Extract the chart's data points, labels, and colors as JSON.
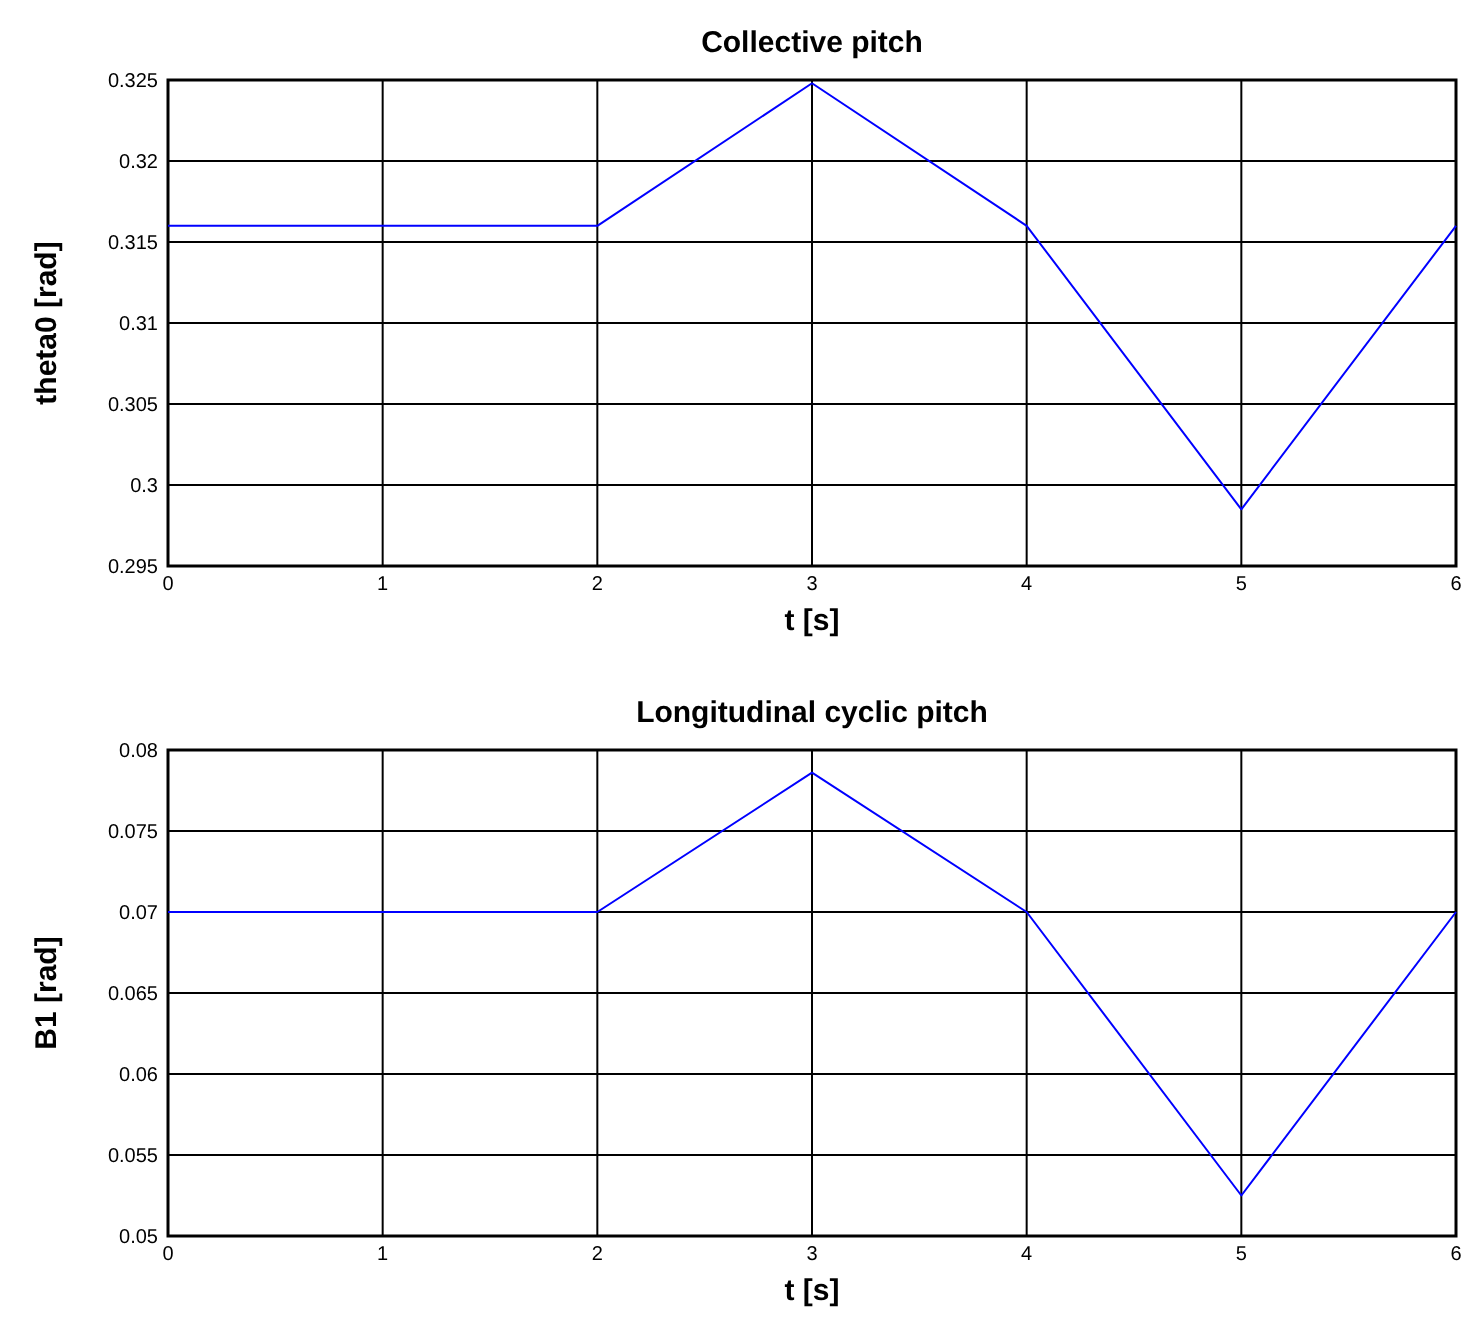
{
  "chart_data": [
    {
      "type": "line",
      "title": "Collective pitch",
      "xlabel": "t [s]",
      "ylabel": "theta0 [rad]",
      "x": [
        0,
        2,
        3,
        4,
        5,
        6
      ],
      "series": [
        {
          "color": "#0000ff",
          "values": [
            0.316,
            0.316,
            0.3248,
            0.316,
            0.2985,
            0.316
          ]
        }
      ],
      "xlim": [
        0,
        6
      ],
      "xticks": [
        0,
        1,
        2,
        3,
        4,
        5,
        6
      ],
      "ylim": [
        0.295,
        0.325
      ],
      "yticks": [
        0.295,
        0.3,
        0.305,
        0.31,
        0.315,
        0.32,
        0.325
      ],
      "grid": true
    },
    {
      "type": "line",
      "title": "Longitudinal cyclic pitch",
      "xlabel": "t [s]",
      "ylabel": "B1 [rad]",
      "x": [
        0,
        2,
        3,
        4,
        5,
        6
      ],
      "series": [
        {
          "color": "#0000ff",
          "values": [
            0.07,
            0.07,
            0.0786,
            0.07,
            0.0525,
            0.07
          ]
        }
      ],
      "xlim": [
        0,
        6
      ],
      "xticks": [
        0,
        1,
        2,
        3,
        4,
        5,
        6
      ],
      "ylim": [
        0.05,
        0.08
      ],
      "yticks": [
        0.05,
        0.055,
        0.06,
        0.065,
        0.07,
        0.075,
        0.08
      ],
      "grid": true
    }
  ]
}
